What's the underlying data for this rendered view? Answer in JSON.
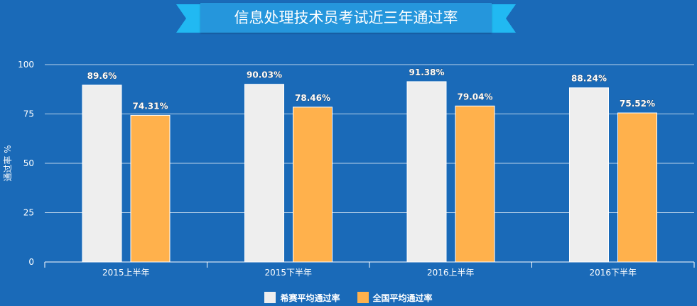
{
  "chart_data": {
    "type": "bar",
    "title": "信息处理技术员考试近三年通过率",
    "ylabel": "通过率 %",
    "categories": [
      "2015上半年",
      "2015下半年",
      "2016上半年",
      "2016下半年"
    ],
    "series": [
      {
        "name": "希赛平均通过率",
        "values": [
          89.6,
          90.03,
          91.38,
          88.24
        ],
        "labels": [
          "89.6%",
          "90.03%",
          "91.38%",
          "88.24%"
        ],
        "color": "#eeeeee"
      },
      {
        "name": "全国平均通过率",
        "values": [
          74.31,
          78.46,
          79.04,
          75.52
        ],
        "labels": [
          "74.31%",
          "78.46%",
          "79.04%",
          "75.52%"
        ],
        "color": "#ffb14c"
      }
    ],
    "ylim": [
      0,
      100
    ],
    "yticks": [
      "0",
      "25",
      "50",
      "75",
      "100"
    ],
    "grid": true,
    "legend_position": "bottom"
  },
  "colors": {
    "background": "#1a6ab8",
    "title_box": "#2596dc",
    "ribbon": "#21b9f2",
    "gridline": "#ffffff",
    "text": "#ffffff"
  }
}
